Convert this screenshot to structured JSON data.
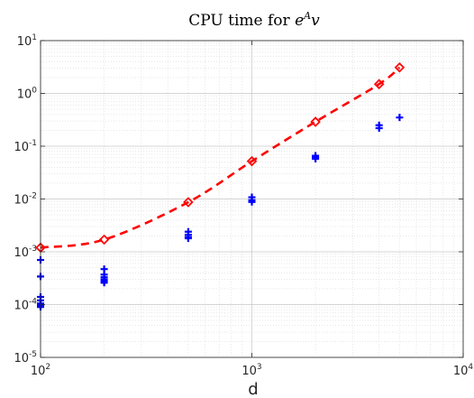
{
  "chart_data": {
    "type": "scatter",
    "title": {
      "prefix": "CPU time for ",
      "base": "e",
      "sup": "A",
      "suffix": "v"
    },
    "xlabel": "d",
    "ylabel": "",
    "xscale": "log",
    "yscale": "log",
    "xlim": [
      100,
      10000
    ],
    "ylim": [
      1e-05,
      10
    ],
    "x_ticks": [
      {
        "base": "10",
        "exp": "2"
      },
      {
        "base": "10",
        "exp": "3"
      },
      {
        "base": "10",
        "exp": "4"
      }
    ],
    "y_ticks": [
      {
        "base": "10",
        "exp": "-5"
      },
      {
        "base": "10",
        "exp": "-4"
      },
      {
        "base": "10",
        "exp": "-3"
      },
      {
        "base": "10",
        "exp": "-2"
      },
      {
        "base": "10",
        "exp": "-1"
      },
      {
        "base": "10",
        "exp": "0"
      },
      {
        "base": "10",
        "exp": "1"
      }
    ],
    "grid": true,
    "minor_grid": true,
    "series": [
      {
        "marker": "diamond",
        "line": "dashed",
        "color": "#ff0000",
        "x": [
          100,
          200,
          500,
          1000,
          2000,
          4000,
          5000
        ],
        "y": [
          0.0012,
          0.0017,
          0.0087,
          0.052,
          0.29,
          1.5,
          3.1
        ]
      },
      {
        "marker": "plus",
        "line": "none",
        "color": "#0000ff",
        "x": [
          100,
          100,
          100,
          100,
          100,
          100,
          100,
          100,
          200,
          200,
          200,
          200,
          200,
          200,
          500,
          500,
          500,
          500,
          1000,
          1000,
          1000,
          2000,
          2000,
          2000,
          4000,
          4000,
          5000
        ],
        "y": [
          0.0007,
          0.00034,
          0.00014,
          0.00012,
          0.000105,
          0.0001,
          9.5e-05,
          9e-05,
          0.00047,
          0.00037,
          0.00033,
          0.0003,
          0.00028,
          0.00026,
          0.0024,
          0.0021,
          0.0019,
          0.0018,
          0.0108,
          0.0095,
          0.0088,
          0.066,
          0.061,
          0.058,
          0.25,
          0.22,
          0.35
        ]
      }
    ]
  }
}
